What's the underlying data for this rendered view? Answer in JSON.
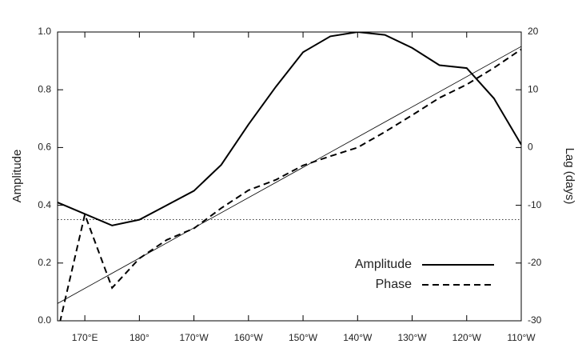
{
  "chart_data": {
    "type": "line",
    "ylabel": "Amplitude",
    "y2label": "Lag (days)",
    "x": [
      165,
      170,
      175,
      180,
      185,
      190,
      195,
      200,
      205,
      210,
      215,
      220,
      225,
      230,
      235,
      240,
      245,
      250
    ],
    "series": [
      {
        "name": "Amplitude",
        "color": "#000000",
        "dash": "solid",
        "values": [
          0.41,
          0.37,
          0.33,
          0.35,
          0.4,
          0.45,
          0.54,
          0.68,
          0.81,
          0.93,
          0.985,
          1.0,
          0.99,
          0.945,
          0.885,
          0.875,
          0.77,
          0.61
        ]
      },
      {
        "name": "Phase",
        "color": "#000000",
        "dash": "dashed",
        "axis": "y2",
        "values": [
          -32,
          -11.6,
          -24.3,
          -19.2,
          -16,
          -14,
          -10.5,
          -7.4,
          -5.6,
          -3.1,
          -1.5,
          0,
          2.7,
          5.6,
          8.6,
          10.9,
          13.8,
          17
        ]
      }
    ],
    "reference_line": {
      "x": [
        165,
        250
      ],
      "values": [
        0.06,
        0.95
      ]
    },
    "hline": 0.35,
    "xlim": [
      165,
      250
    ],
    "xticks": [
      {
        "value": 170,
        "label": "170°E"
      },
      {
        "value": 180,
        "label": "180°"
      },
      {
        "value": 190,
        "label": "170°W"
      },
      {
        "value": 200,
        "label": "160°W"
      },
      {
        "value": 210,
        "label": "150°W"
      },
      {
        "value": 220,
        "label": "140°W"
      },
      {
        "value": 230,
        "label": "130°W"
      },
      {
        "value": 240,
        "label": "120°W"
      },
      {
        "value": 250,
        "label": "110°W"
      }
    ],
    "ylim": [
      0,
      1
    ],
    "yticks": [
      {
        "value": 0,
        "label": "0.0"
      },
      0.2,
      0.4,
      0.6,
      0.8,
      {
        "value": 1,
        "label": "1.0"
      }
    ],
    "y2lim": [
      -30,
      20
    ],
    "y2ticks": [
      -30,
      -20,
      -10,
      0,
      10,
      20
    ],
    "legend": "lower right"
  }
}
